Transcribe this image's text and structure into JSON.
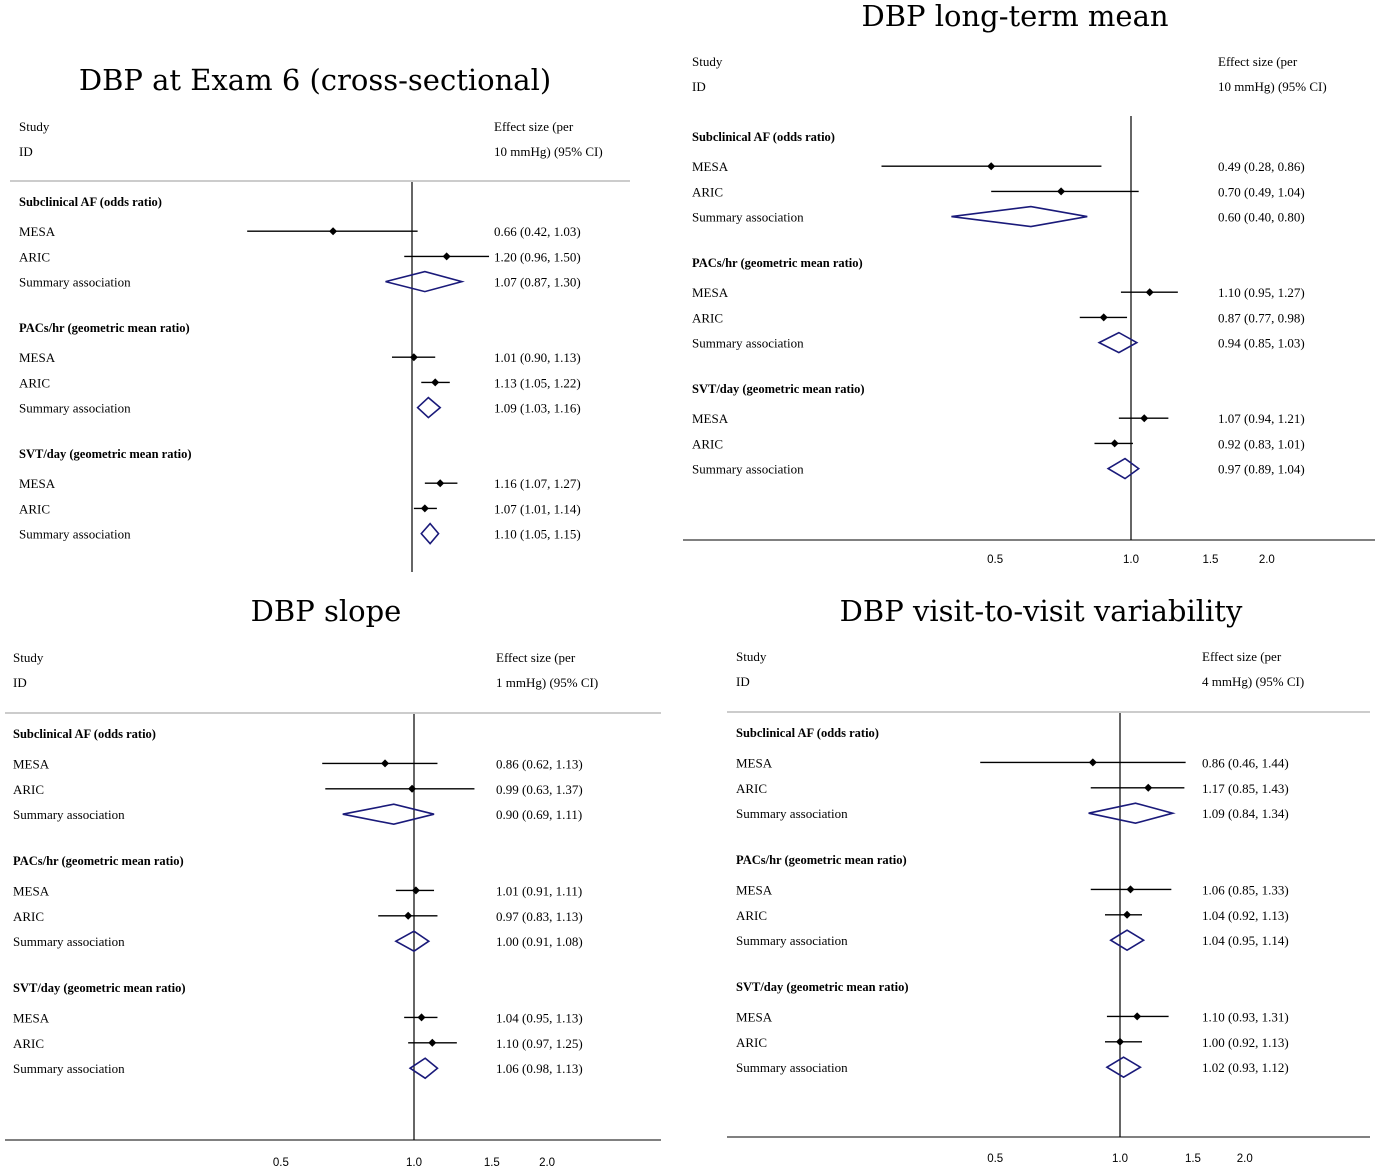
{
  "colors": {
    "point": "#000000",
    "summary": "#1a1a7a",
    "axis": "#000000",
    "rule": "#999999"
  },
  "chart_data": [
    {
      "type": "forest",
      "title": "DBP at Exam 6 (cross-sectional)",
      "header": {
        "study": "Study",
        "id": "ID",
        "effect_line1": "Effect size (per",
        "effect_line2": "10 mmHg) (95% CI)"
      },
      "null_value": 1.0,
      "scale": "log",
      "x_ticks": [],
      "groups": [
        {
          "name": "Subclinical AF (odds ratio)",
          "rows": [
            {
              "label": "MESA",
              "est": 0.66,
              "lo": 0.42,
              "hi": 1.03,
              "text": "0.66 (0.42, 1.03)",
              "kind": "point"
            },
            {
              "label": "ARIC",
              "est": 1.2,
              "lo": 0.96,
              "hi": 1.5,
              "text": "1.20 (0.96, 1.50)",
              "kind": "point"
            },
            {
              "label": "Summary association",
              "est": 1.07,
              "lo": 0.87,
              "hi": 1.3,
              "text": "1.07 (0.87, 1.30)",
              "kind": "summary"
            }
          ]
        },
        {
          "name": "PACs/hr (geometric mean ratio)",
          "rows": [
            {
              "label": "MESA",
              "est": 1.01,
              "lo": 0.9,
              "hi": 1.13,
              "text": "1.01 (0.90, 1.13)",
              "kind": "point"
            },
            {
              "label": "ARIC",
              "est": 1.13,
              "lo": 1.05,
              "hi": 1.22,
              "text": "1.13 (1.05, 1.22)",
              "kind": "point"
            },
            {
              "label": "Summary association",
              "est": 1.09,
              "lo": 1.03,
              "hi": 1.16,
              "text": "1.09 (1.03, 1.16)",
              "kind": "summary"
            }
          ]
        },
        {
          "name": "SVT/day (geometric mean ratio)",
          "rows": [
            {
              "label": "MESA",
              "est": 1.16,
              "lo": 1.07,
              "hi": 1.27,
              "text": "1.16 (1.07, 1.27)",
              "kind": "point"
            },
            {
              "label": "ARIC",
              "est": 1.07,
              "lo": 1.01,
              "hi": 1.14,
              "text": "1.07 (1.01, 1.14)",
              "kind": "point"
            },
            {
              "label": "Summary association",
              "est": 1.1,
              "lo": 1.05,
              "hi": 1.15,
              "text": "1.10 (1.05, 1.15)",
              "kind": "summary"
            }
          ]
        }
      ]
    },
    {
      "type": "forest",
      "title": "DBP long-term mean",
      "header": {
        "study": "Study",
        "id": "ID",
        "effect_line1": "Effect size (per",
        "effect_line2": "10 mmHg) (95% CI)"
      },
      "null_value": 1.0,
      "scale": "log",
      "x_ticks": [
        "0.5",
        "1.0",
        "1.5",
        "2.0"
      ],
      "groups": [
        {
          "name": "Subclinical AF (odds ratio)",
          "rows": [
            {
              "label": "MESA",
              "est": 0.49,
              "lo": 0.28,
              "hi": 0.86,
              "text": "0.49 (0.28, 0.86)",
              "kind": "point"
            },
            {
              "label": "ARIC",
              "est": 0.7,
              "lo": 0.49,
              "hi": 1.04,
              "text": "0.70 (0.49, 1.04)",
              "kind": "point"
            },
            {
              "label": "Summary association",
              "est": 0.6,
              "lo": 0.4,
              "hi": 0.8,
              "text": "0.60 (0.40, 0.80)",
              "kind": "summary"
            }
          ]
        },
        {
          "name": "PACs/hr (geometric mean ratio)",
          "rows": [
            {
              "label": "MESA",
              "est": 1.1,
              "lo": 0.95,
              "hi": 1.27,
              "text": "1.10 (0.95, 1.27)",
              "kind": "point"
            },
            {
              "label": "ARIC",
              "est": 0.87,
              "lo": 0.77,
              "hi": 0.98,
              "text": "0.87 (0.77, 0.98)",
              "kind": "point"
            },
            {
              "label": "Summary association",
              "est": 0.94,
              "lo": 0.85,
              "hi": 1.03,
              "text": "0.94 (0.85, 1.03)",
              "kind": "summary"
            }
          ]
        },
        {
          "name": "SVT/day (geometric mean ratio)",
          "rows": [
            {
              "label": "MESA",
              "est": 1.07,
              "lo": 0.94,
              "hi": 1.21,
              "text": "1.07 (0.94, 1.21)",
              "kind": "point"
            },
            {
              "label": "ARIC",
              "est": 0.92,
              "lo": 0.83,
              "hi": 1.01,
              "text": "0.92 (0.83, 1.01)",
              "kind": "point"
            },
            {
              "label": "Summary association",
              "est": 0.97,
              "lo": 0.89,
              "hi": 1.04,
              "text": "0.97 (0.89, 1.04)",
              "kind": "summary"
            }
          ]
        }
      ]
    },
    {
      "type": "forest",
      "title": "DBP slope",
      "header": {
        "study": "Study",
        "id": "ID",
        "effect_line1": "Effect size (per",
        "effect_line2": "1 mmHg) (95% CI)"
      },
      "null_value": 1.0,
      "scale": "log",
      "x_ticks": [
        "0.5",
        "1.0",
        "1.5",
        "2.0"
      ],
      "groups": [
        {
          "name": "Subclinical AF (odds ratio)",
          "rows": [
            {
              "label": "MESA",
              "est": 0.86,
              "lo": 0.62,
              "hi": 1.13,
              "text": "0.86 (0.62, 1.13)",
              "kind": "point"
            },
            {
              "label": "ARIC",
              "est": 0.99,
              "lo": 0.63,
              "hi": 1.37,
              "text": "0.99 (0.63, 1.37)",
              "kind": "point"
            },
            {
              "label": "Summary association",
              "est": 0.9,
              "lo": 0.69,
              "hi": 1.11,
              "text": "0.90 (0.69, 1.11)",
              "kind": "summary"
            }
          ]
        },
        {
          "name": "PACs/hr (geometric mean ratio)",
          "rows": [
            {
              "label": "MESA",
              "est": 1.01,
              "lo": 0.91,
              "hi": 1.11,
              "text": "1.01 (0.91, 1.11)",
              "kind": "point"
            },
            {
              "label": "ARIC",
              "est": 0.97,
              "lo": 0.83,
              "hi": 1.13,
              "text": "0.97 (0.83, 1.13)",
              "kind": "point"
            },
            {
              "label": "Summary association",
              "est": 1.0,
              "lo": 0.91,
              "hi": 1.08,
              "text": "1.00 (0.91, 1.08)",
              "kind": "summary"
            }
          ]
        },
        {
          "name": "SVT/day (geometric mean ratio)",
          "rows": [
            {
              "label": "MESA",
              "est": 1.04,
              "lo": 0.95,
              "hi": 1.13,
              "text": "1.04 (0.95, 1.13)",
              "kind": "point"
            },
            {
              "label": "ARIC",
              "est": 1.1,
              "lo": 0.97,
              "hi": 1.25,
              "text": "1.10 (0.97, 1.25)",
              "kind": "point"
            },
            {
              "label": "Summary association",
              "est": 1.06,
              "lo": 0.98,
              "hi": 1.13,
              "text": "1.06 (0.98, 1.13)",
              "kind": "summary"
            }
          ]
        }
      ]
    },
    {
      "type": "forest",
      "title": "DBP visit-to-visit variability",
      "header": {
        "study": "Study",
        "id": "ID",
        "effect_line1": "Effect size (per",
        "effect_line2": "4 mmHg) (95% CI)"
      },
      "null_value": 1.0,
      "scale": "log",
      "x_ticks": [
        "0.5",
        "1.0",
        "1.5",
        "2.0"
      ],
      "groups": [
        {
          "name": "Subclinical AF (odds ratio)",
          "rows": [
            {
              "label": "MESA",
              "est": 0.86,
              "lo": 0.46,
              "hi": 1.44,
              "text": "0.86 (0.46, 1.44)",
              "kind": "point"
            },
            {
              "label": "ARIC",
              "est": 1.17,
              "lo": 0.85,
              "hi": 1.43,
              "text": "1.17 (0.85, 1.43)",
              "kind": "point"
            },
            {
              "label": "Summary association",
              "est": 1.09,
              "lo": 0.84,
              "hi": 1.34,
              "text": "1.09 (0.84, 1.34)",
              "kind": "summary"
            }
          ]
        },
        {
          "name": "PACs/hr (geometric mean ratio)",
          "rows": [
            {
              "label": "MESA",
              "est": 1.06,
              "lo": 0.85,
              "hi": 1.33,
              "text": "1.06 (0.85, 1.33)",
              "kind": "point"
            },
            {
              "label": "ARIC",
              "est": 1.04,
              "lo": 0.92,
              "hi": 1.13,
              "text": "1.04 (0.92, 1.13)",
              "kind": "point"
            },
            {
              "label": "Summary association",
              "est": 1.04,
              "lo": 0.95,
              "hi": 1.14,
              "text": "1.04 (0.95, 1.14)",
              "kind": "summary"
            }
          ]
        },
        {
          "name": "SVT/day (geometric mean ratio)",
          "rows": [
            {
              "label": "MESA",
              "est": 1.1,
              "lo": 0.93,
              "hi": 1.31,
              "text": "1.10 (0.93, 1.31)",
              "kind": "point"
            },
            {
              "label": "ARIC",
              "est": 1.0,
              "lo": 0.92,
              "hi": 1.13,
              "text": "1.00 (0.92, 1.13)",
              "kind": "point"
            },
            {
              "label": "Summary association",
              "est": 1.02,
              "lo": 0.93,
              "hi": 1.12,
              "text": "1.02 (0.93, 1.12)",
              "kind": "summary"
            }
          ]
        }
      ]
    }
  ]
}
